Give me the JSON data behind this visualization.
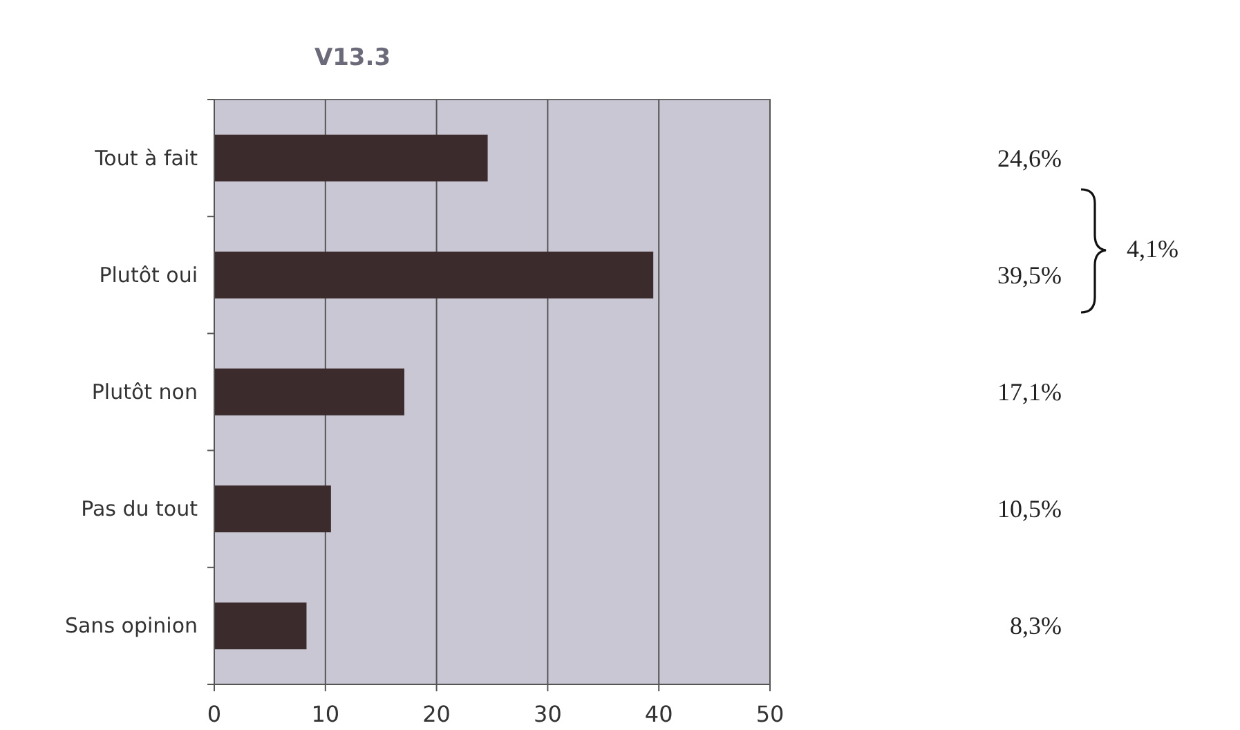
{
  "chart_data": {
    "type": "bar",
    "orientation": "horizontal",
    "title": "V13.3",
    "categories": [
      "Tout à fait",
      "Plutôt oui",
      "Plutôt non",
      "Pas du tout",
      "Sans opinion"
    ],
    "values": [
      24.6,
      39.5,
      17.1,
      10.5,
      8.3
    ],
    "color": "#3b2b2c",
    "value_labels": [
      "24,6%",
      "39,5%",
      "17,1%",
      "10,5%",
      "8,3%"
    ],
    "annotations": [
      "4,1%"
    ],
    "xlim": [
      0,
      50
    ],
    "xticks": [
      0,
      10,
      20,
      30,
      40,
      50
    ],
    "grid": "x"
  }
}
